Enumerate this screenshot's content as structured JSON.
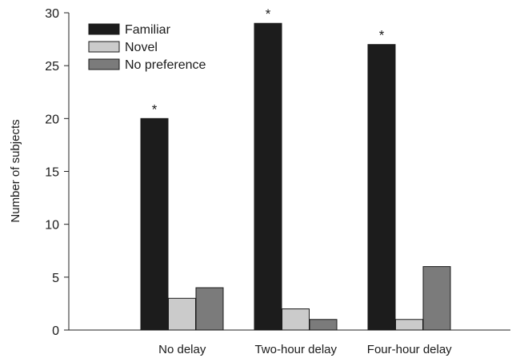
{
  "chart_data": {
    "type": "bar",
    "ylabel": "Number of subjects",
    "xlabel": "",
    "ylim": [
      0,
      30
    ],
    "yticks": [
      0,
      5,
      10,
      15,
      20,
      25,
      30
    ],
    "categories": [
      "No delay",
      "Two-hour delay",
      "Four-hour delay"
    ],
    "series": [
      {
        "name": "Familiar",
        "values": [
          20,
          29,
          27
        ],
        "color": "#1c1c1c"
      },
      {
        "name": "Novel",
        "values": [
          3,
          2,
          1
        ],
        "color": "#cbcbcb"
      },
      {
        "name": "No preference",
        "values": [
          4,
          1,
          6
        ],
        "color": "#7b7b7b"
      }
    ],
    "annotations": [
      {
        "category": "No delay",
        "series": "Familiar",
        "text": "*"
      },
      {
        "category": "Two-hour delay",
        "series": "Familiar",
        "text": "*"
      },
      {
        "category": "Four-hour delay",
        "series": "Familiar",
        "text": "*"
      }
    ],
    "legend_position": "top-left",
    "grid": false
  }
}
